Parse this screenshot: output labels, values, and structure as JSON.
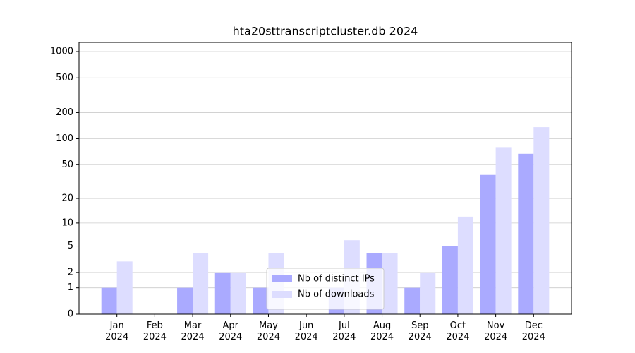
{
  "chart_data": {
    "type": "bar",
    "title": "hta20sttranscriptcluster.db 2024",
    "categories": [
      "Jan\n2024",
      "Feb\n2024",
      "Mar\n2024",
      "Apr\n2024",
      "May\n2024",
      "Jun\n2024",
      "Jul\n2024",
      "Aug\n2024",
      "Sep\n2024",
      "Oct\n2024",
      "Nov\n2024",
      "Dec\n2024"
    ],
    "series": [
      {
        "name": "Nb of distinct IPs",
        "color": "#aaaaff",
        "values": [
          1,
          0,
          1,
          2,
          1,
          0,
          1,
          4,
          1,
          5,
          38,
          67
        ]
      },
      {
        "name": "Nb of downloads",
        "color": "#ddddff",
        "values": [
          3,
          0,
          4,
          2,
          4,
          0,
          6,
          4,
          2,
          12,
          80,
          136
        ]
      }
    ],
    "yscale": "log1p",
    "ylim": [
      0,
      1273
    ],
    "yticks": [
      0,
      1,
      2,
      5,
      10,
      20,
      50,
      100,
      200,
      500,
      1000
    ],
    "grid": true,
    "legend": "lower center"
  }
}
